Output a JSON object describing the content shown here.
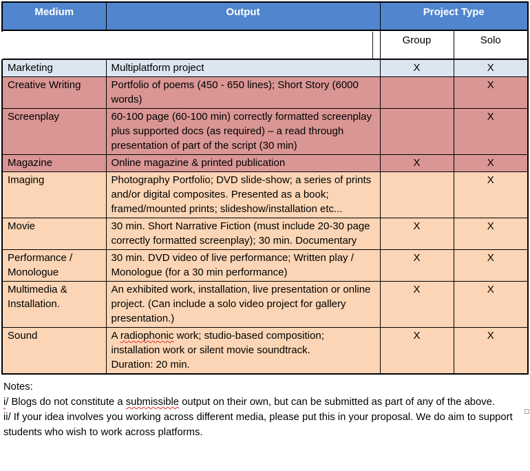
{
  "colors": {
    "header_bg": "#5186CE",
    "header_text": "#FFFFFF",
    "row_blue": "#DCE6F1",
    "row_red": "#D99694",
    "row_orange": "#FBD5B5",
    "border": "#000000",
    "text": "#000000",
    "squiggle": "#E03030",
    "handle": "#A6A6A6"
  },
  "misspelled_words": [
    "radiophonic",
    "submissible"
  ],
  "table": {
    "header": {
      "medium": "Medium",
      "output": "Output",
      "project_type": "Project Type",
      "group": "Group",
      "solo": "Solo"
    },
    "rows": [
      {
        "medium": "Marketing",
        "output": "Multiplatform project",
        "group": "X",
        "solo": "X",
        "tone": "blue"
      },
      {
        "medium": "Creative Writing",
        "output": "Portfolio of poems (450 - 650 lines); Short Story (6000 words)",
        "group": "",
        "solo": "X",
        "tone": "red"
      },
      {
        "medium": "Screenplay",
        "output": "60-100 page (60-100 min) correctly formatted screenplay plus supported docs (as required) – a read through presentation of part of the script (30 min)",
        "group": "",
        "solo": "X",
        "tone": "red"
      },
      {
        "medium": "Magazine",
        "output": "Online magazine & printed publication",
        "group": "X",
        "solo": "X",
        "tone": "red"
      },
      {
        "medium": "Imaging",
        "output": "Photography Portfolio; DVD slide-show; a series of prints and/or digital composites. Presented as a book; framed/mounted prints; slideshow/installation etc...",
        "group": "",
        "solo": "X",
        "tone": "orange"
      },
      {
        "medium": "Movie",
        "output": "30 min. Short Narrative Fiction (must include 20-30 page correctly formatted screenplay); 30 min. Documentary",
        "group": "X",
        "solo": "X",
        "tone": "orange"
      },
      {
        "medium": "Performance / Monologue",
        "output": "30 min. DVD video of live performance; Written play / Monologue (for a 30 min performance)",
        "group": "X",
        "solo": "X",
        "tone": "orange"
      },
      {
        "medium": "Multimedia & Installation.",
        "output": "An exhibited work, installation, live presentation or online project. (Can include a solo video project for gallery presentation.)",
        "group": "X",
        "solo": "X",
        "tone": "orange"
      },
      {
        "medium": "Sound",
        "output": "A radiophonic work; studio-based composition; installation work or silent movie soundtrack.\nDuration: 20 min.",
        "group": "X",
        "solo": "X",
        "tone": "orange"
      }
    ]
  },
  "notes": {
    "title": "Notes:",
    "note1_lead": "i",
    "note1_rest": "/ Blogs do not constitute a submissible output on their own, but can be submitted as part of any of the above.",
    "note2": "ii/ If your idea involves you working across different media, please put this in your proposal. We do aim to support students who wish to work across platforms."
  }
}
